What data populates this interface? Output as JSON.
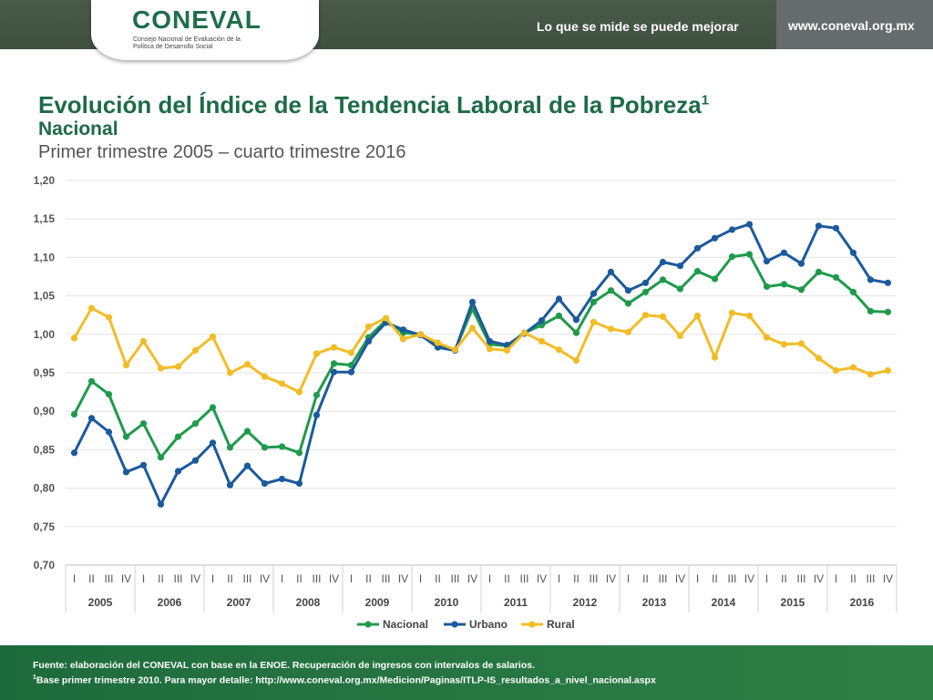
{
  "header": {
    "logo_text": "CONEVAL",
    "logo_subtitle": "Consejo Nacional de Evaluación de la Política de Desarrollo Social",
    "slogan": "Lo que se mide se puede mejorar",
    "website": "www.coneval.org.mx",
    "colors": {
      "band": "#435443",
      "band_right": "#666b6b",
      "logo": "#1f6e4a"
    }
  },
  "heading": {
    "title": "Evolución del Índice de la Tendencia Laboral de la Pobreza",
    "title_sup": "1",
    "subtitle": "Nacional",
    "period": "Primer trimestre 2005 – cuarto trimestre 2016"
  },
  "chart_data": {
    "type": "line",
    "title": "Evolución del Índice de la Tendencia Laboral de la Pobreza",
    "xlabel": "",
    "ylabel": "",
    "ylim": [
      0.7,
      1.2
    ],
    "yticks": [
      "0,70",
      "0,75",
      "0,80",
      "0,85",
      "0,90",
      "0,95",
      "1,00",
      "1,05",
      "1,10",
      "1,15",
      "1,20"
    ],
    "grid": true,
    "legend_position": "bottom",
    "quarters": [
      "I",
      "II",
      "III",
      "IV"
    ],
    "years": [
      "2005",
      "2006",
      "2007",
      "2008",
      "2009",
      "2010",
      "2011",
      "2012",
      "2013",
      "2014",
      "2015",
      "2016"
    ],
    "series": [
      {
        "name": "Nacional",
        "color": "#1f9a4b",
        "values": [
          0.896,
          0.939,
          0.922,
          0.867,
          0.884,
          0.84,
          0.867,
          0.884,
          0.905,
          0.853,
          0.874,
          0.853,
          0.854,
          0.846,
          0.921,
          0.962,
          0.96,
          0.996,
          1.018,
          1.002,
          1.0,
          0.985,
          0.98,
          1.033,
          0.987,
          0.985,
          1.002,
          1.012,
          1.024,
          1.002,
          1.042,
          1.057,
          1.04,
          1.055,
          1.071,
          1.059,
          1.082,
          1.072,
          1.101,
          1.104,
          1.062,
          1.065,
          1.058,
          1.081,
          1.074,
          1.055,
          1.03,
          1.029
        ]
      },
      {
        "name": "Urbano",
        "color": "#1b5a9c",
        "values": [
          0.846,
          0.891,
          0.873,
          0.821,
          0.83,
          0.779,
          0.822,
          0.836,
          0.859,
          0.804,
          0.829,
          0.806,
          0.812,
          0.806,
          0.895,
          0.951,
          0.951,
          0.991,
          1.015,
          1.006,
          0.999,
          0.983,
          0.979,
          1.042,
          0.991,
          0.986,
          1.001,
          1.018,
          1.046,
          1.019,
          1.053,
          1.081,
          1.057,
          1.067,
          1.094,
          1.089,
          1.112,
          1.125,
          1.136,
          1.143,
          1.095,
          1.106,
          1.092,
          1.141,
          1.138,
          1.106,
          1.071,
          1.067
        ]
      },
      {
        "name": "Rural",
        "color": "#f2bc26",
        "values": [
          0.995,
          1.034,
          1.022,
          0.96,
          0.991,
          0.956,
          0.958,
          0.979,
          0.997,
          0.95,
          0.961,
          0.945,
          0.936,
          0.925,
          0.975,
          0.983,
          0.976,
          1.01,
          1.021,
          0.994,
          1.0,
          0.989,
          0.98,
          1.008,
          0.981,
          0.979,
          1.002,
          0.991,
          0.98,
          0.966,
          1.016,
          1.007,
          1.003,
          1.025,
          1.023,
          0.998,
          1.024,
          0.97,
          1.028,
          1.024,
          0.996,
          0.987,
          0.988,
          0.969,
          0.953,
          0.957,
          0.948,
          0.953
        ]
      }
    ]
  },
  "footer": {
    "line1": "Fuente: elaboración del CONEVAL con base en la ENOE. Recuperación de ingresos con intervalos de salarios.",
    "line2_sup": "1",
    "line2": "Base primer trimestre 2010. Para mayor detalle: http://www.coneval.org.mx/Medicion/Paginas/ITLP-IS_resultados_a_nivel_nacional.aspx"
  }
}
